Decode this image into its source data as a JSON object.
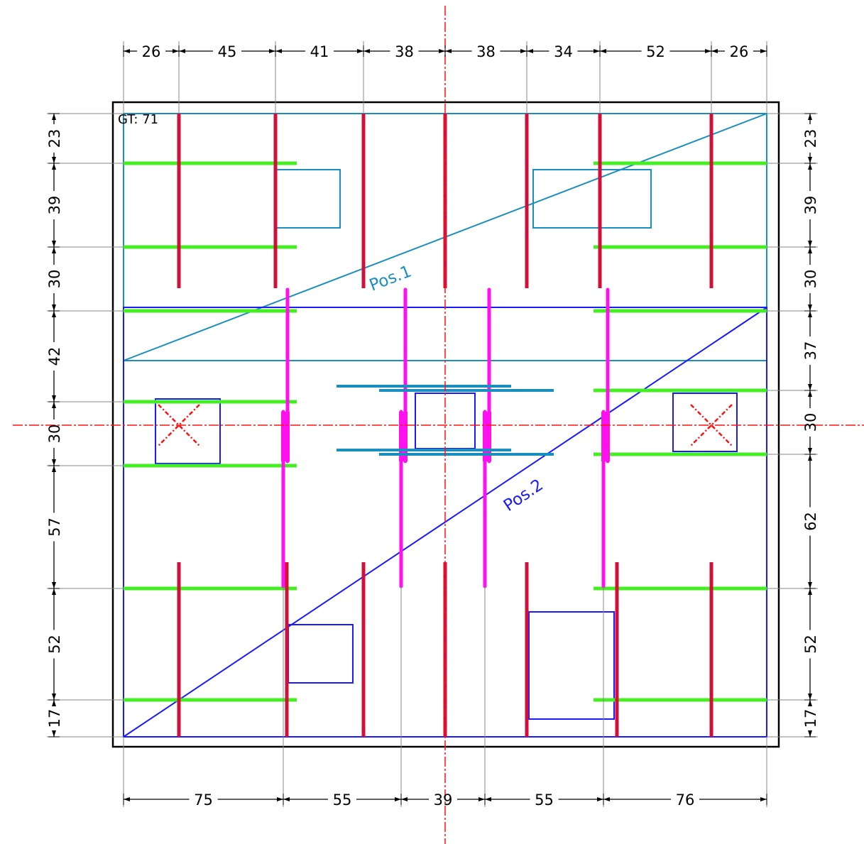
{
  "label": "GT: 71",
  "positions": [
    "Pos.1",
    "Pos.2"
  ],
  "dims_top": [
    "26",
    "45",
    "41",
    "38",
    "38",
    "34",
    "52",
    "26"
  ],
  "dims_left": [
    "23",
    "39",
    "30",
    "42",
    "30",
    "57",
    "52",
    "17"
  ],
  "dims_right": [
    "23",
    "39",
    "30",
    "37",
    "30",
    "62",
    "52",
    "17"
  ],
  "dims_bottom": [
    "75",
    "55",
    "39",
    "55",
    "76"
  ],
  "colors": {
    "outline": "#000000",
    "pos1": "#1a8fbf",
    "pos2": "#1a1aff",
    "rebar_red": "#d0103a",
    "rebar_green": "#44ee22",
    "rebar_magenta": "#ff11ee",
    "beam": "#1a8fbf",
    "axis": "#ff1111"
  }
}
